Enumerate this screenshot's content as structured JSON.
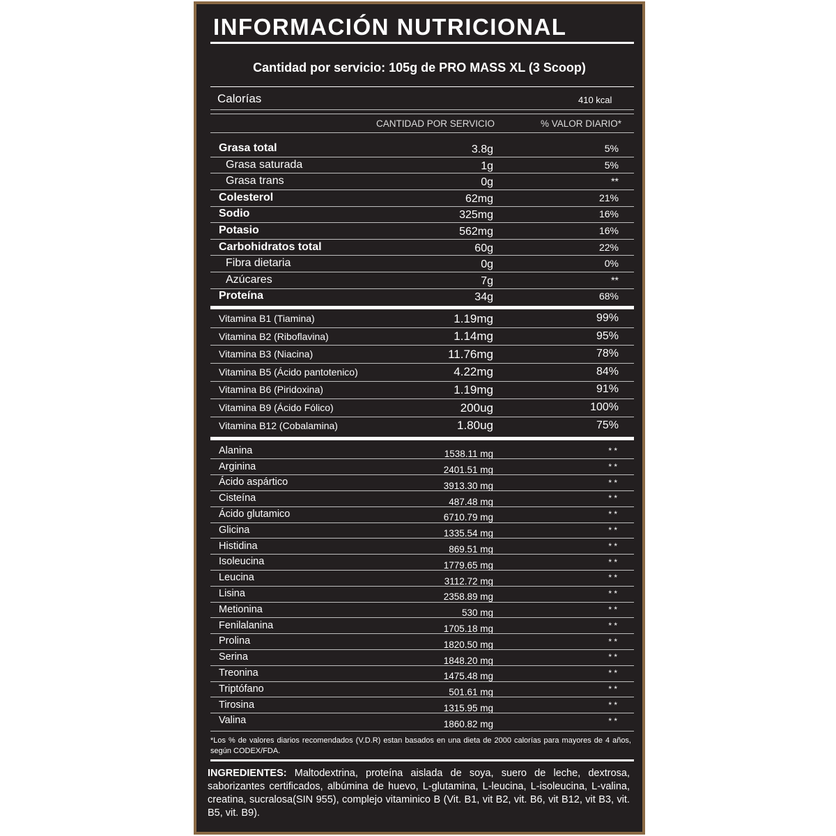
{
  "header": {
    "title": "INFORMACIÓN NUTRICIONAL",
    "serving": "Cantidad por servicio: 105g de PRO MASS XL (3 Scoop)"
  },
  "calories": {
    "label": "Calorías",
    "value": "410 kcal"
  },
  "columns": [
    "CANTIDAD POR SERVICIO",
    "% VALOR DIARIO*"
  ],
  "nutrients": {
    "rows": [
      [
        "Grasa total",
        "3.8g",
        "5%"
      ],
      [
        "Grasa saturada",
        "1g",
        "5%"
      ],
      [
        "Grasa trans",
        "0g",
        "**"
      ],
      [
        "Colesterol",
        "62mg",
        "21%"
      ],
      [
        "Sodio",
        "325mg",
        "16%"
      ],
      [
        "Potasio",
        "562mg",
        "16%"
      ],
      [
        "Carbohidratos total",
        "60g",
        "22%"
      ],
      [
        "Fibra dietaria",
        "0g",
        "0%"
      ],
      [
        "Azúcares",
        "7g",
        "**"
      ],
      [
        "Proteína",
        "34g",
        "68%"
      ]
    ]
  },
  "vitamins": {
    "rows": [
      [
        "Vitamina B1 (Tiamina)",
        "1.19mg",
        "99%"
      ],
      [
        "Vitamina B2 (Riboflavina)",
        "1.14mg",
        "95%"
      ],
      [
        "Vitamina B3 (Niacina)",
        "11.76mg",
        "78%"
      ],
      [
        "Vitamina B5 (Ácido pantotenico)",
        "4.22mg",
        "84%"
      ],
      [
        "Vitamina B6 (Piridoxina)",
        "1.19mg",
        "91%"
      ],
      [
        "Vitamina B9 (Ácido Fólico)",
        "200ug",
        "100%"
      ],
      [
        "Vitamina B12 (Cobalamina)",
        "1.80ug",
        "75%"
      ]
    ]
  },
  "amino_acids": {
    "rows": [
      [
        "Alanina",
        "1538.11 mg",
        "* *"
      ],
      [
        "Arginina",
        "2401.51 mg",
        "* *"
      ],
      [
        "Ácido aspártico",
        "3913.30 mg",
        "* *"
      ],
      [
        "Cisteína",
        "487.48 mg",
        "* *"
      ],
      [
        "Ácido glutamico",
        "6710.79 mg",
        "* *"
      ],
      [
        "Glicina",
        "1335.54 mg",
        "* *"
      ],
      [
        "Histidina",
        "869.51 mg",
        "* *"
      ],
      [
        "Isoleucina",
        "1779.65 mg",
        "* *"
      ],
      [
        "Leucina",
        "3112.72 mg",
        "* *"
      ],
      [
        "Lisina",
        "2358.89 mg",
        "* *"
      ],
      [
        "Metionina",
        "530 mg",
        "* *"
      ],
      [
        "Fenilalanina",
        "1705.18 mg",
        "* *"
      ],
      [
        "Prolina",
        "1820.50 mg",
        "* *"
      ],
      [
        "Serina",
        "1848.20 mg",
        "* *"
      ],
      [
        "Treonina",
        "1475.48 mg",
        "* *"
      ],
      [
        "Triptófano",
        "501.61 mg",
        "* *"
      ],
      [
        "Tirosina",
        "1315.95 mg",
        "* *"
      ],
      [
        "Valina",
        "1860.82 mg",
        "* *"
      ]
    ]
  },
  "footnote": "*Los % de valores diarios recomendados (V.D.R) estan basados en una dieta de 2000 calorías para mayores de 4 años, según CODEX/FDA.",
  "ingredients": {
    "label": "INGREDIENTES:",
    "text": "Maltodextrina, proteína aislada de soya, suero de leche, dextrosa, saborizantes certificados, albúmina de huevo, L-glutamina, L-leucina, L-isoleucina, L-valina, creatina, sucralosa(SIN 955), complejo vitaminico B (Vit. B1, vit B2, vit. B6, vit B12, vit B3, vit. B5, vit. B9)."
  }
}
